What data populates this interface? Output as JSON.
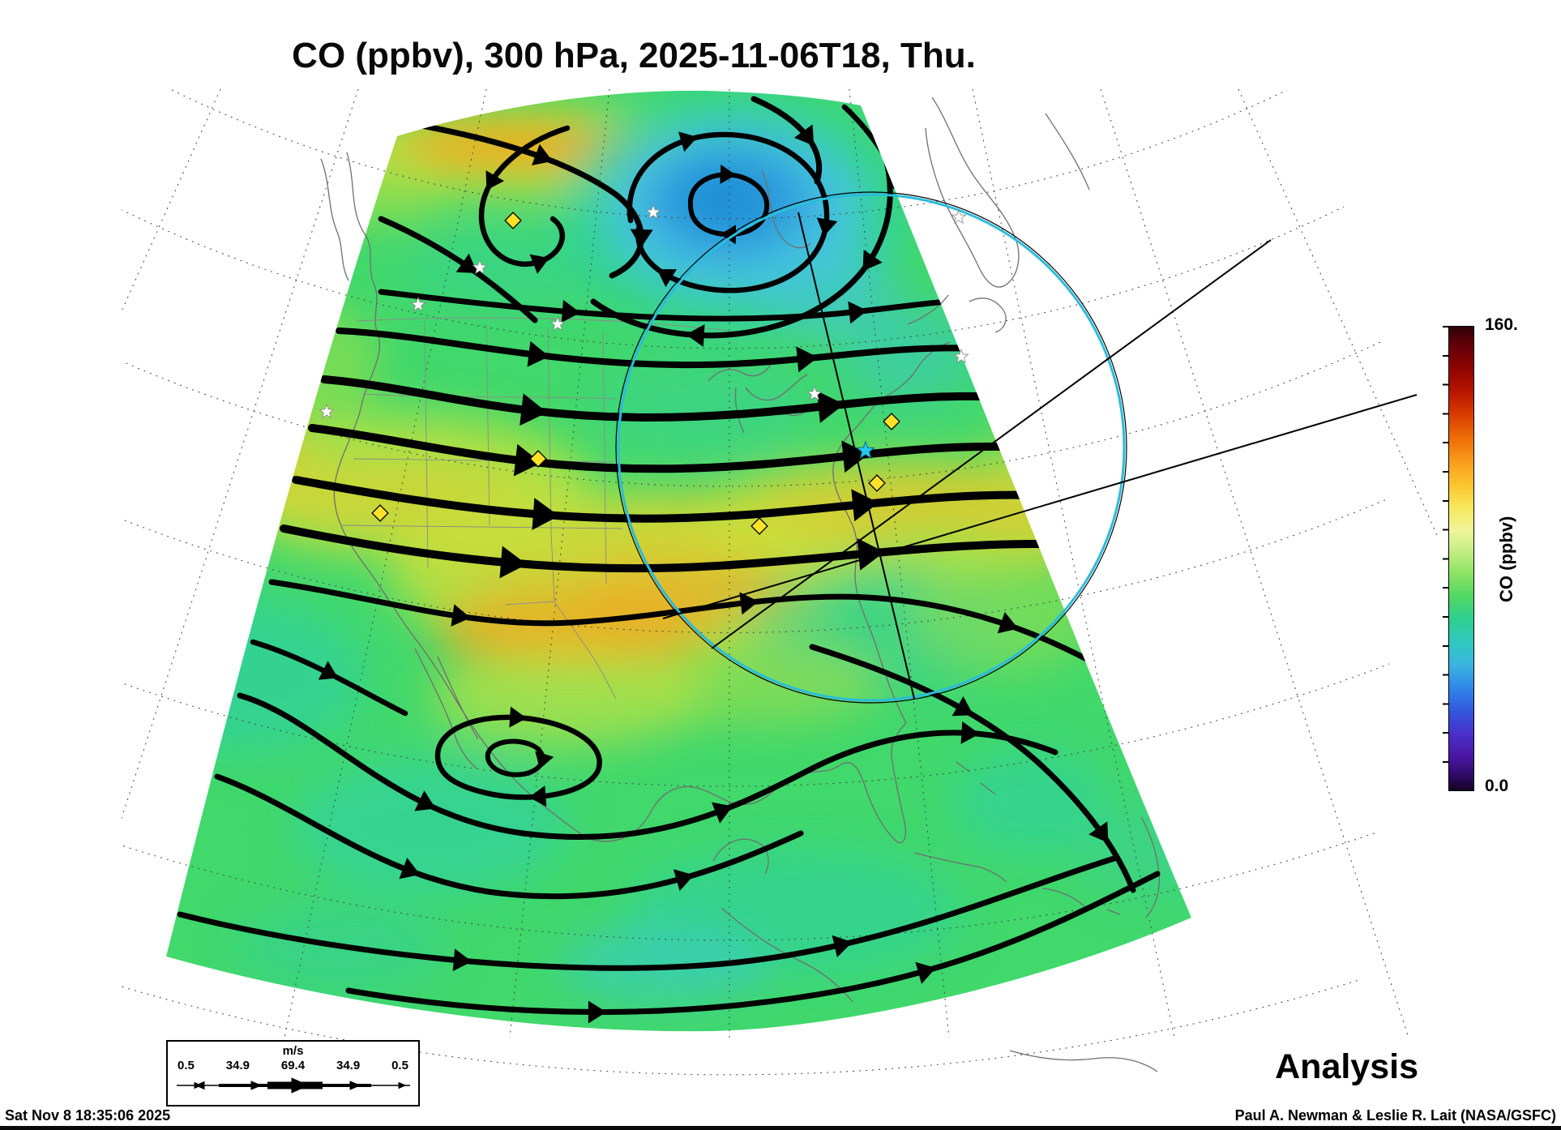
{
  "title": "CO (ppbv), 300 hPa, 2025-11-06T18, Thu.",
  "colorbar": {
    "max_label": "160.",
    "min_label": "0.0",
    "axis_label": "CO (ppbv)"
  },
  "wind_legend": {
    "unit": "m/s",
    "ticks": [
      "0.5",
      "34.9",
      "69.4",
      "34.9",
      "0.5"
    ]
  },
  "annotations": {
    "analysis": "Analysis"
  },
  "footer": {
    "generated": "Sat Nov  8 18:35:06 2025",
    "credit": "Paul A. Newman & Leslie R. Lait (NASA/GSFC)"
  },
  "colors": {
    "field_base_green": "#41d86c",
    "jet_orange_band": "#f2a01e",
    "vortex_blue_core": "#1f8ed6",
    "range_ring_cyan": "#2bbcdc",
    "streamline_black": "#000000",
    "station_marker_yellow": "#ffe126"
  },
  "icons": {
    "station-marker": "yellow-diamond",
    "poi-marker": "white-star",
    "ring-center-marker": "cyan-star"
  }
}
